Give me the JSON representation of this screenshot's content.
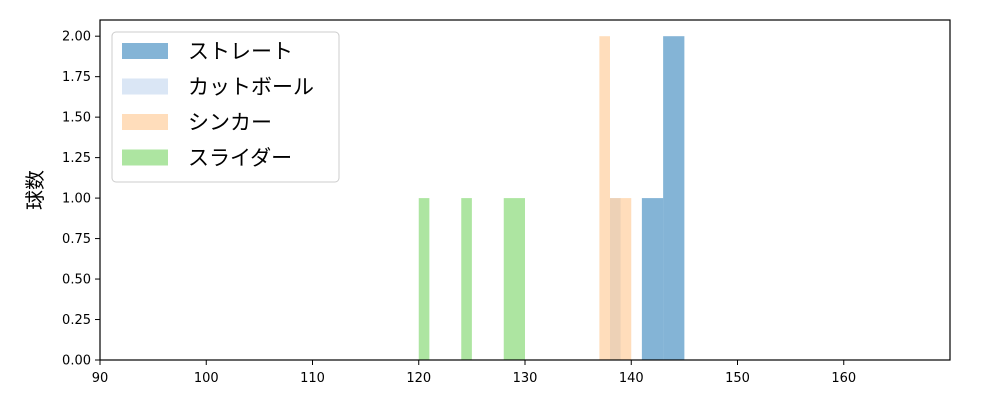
{
  "chart_data": {
    "type": "bar",
    "title": "",
    "xlabel": "",
    "ylabel": "球数",
    "xlim": [
      90,
      170
    ],
    "ylim": [
      0,
      2.1
    ],
    "x_ticks": [
      90,
      100,
      110,
      120,
      130,
      140,
      150,
      160
    ],
    "y_ticks": [
      0.0,
      0.25,
      0.5,
      0.75,
      1.0,
      1.25,
      1.5,
      1.75,
      2.0
    ],
    "y_tick_labels": [
      "0.00",
      "0.25",
      "0.50",
      "0.75",
      "1.00",
      "1.25",
      "1.50",
      "1.75",
      "2.00"
    ],
    "grid": false,
    "legend_position": "top-left",
    "series": [
      {
        "name": "ストレート",
        "color": "#1f77b4",
        "opacity": 0.55,
        "bins": [
          {
            "x0": 141.0,
            "x1": 143.0,
            "count": 1
          },
          {
            "x0": 143.0,
            "x1": 145.0,
            "count": 2
          }
        ]
      },
      {
        "name": "カットボール",
        "color": "#aec7e8",
        "opacity": 0.45,
        "bins": [
          {
            "x0": 138.0,
            "x1": 139.0,
            "count": 1
          }
        ]
      },
      {
        "name": "シンカー",
        "color": "#ffbb78",
        "opacity": 0.5,
        "bins": [
          {
            "x0": 137.0,
            "x1": 138.0,
            "count": 2
          },
          {
            "x0": 138.0,
            "x1": 140.0,
            "count": 1
          }
        ]
      },
      {
        "name": "スライダー",
        "color": "#98df8a",
        "opacity": 0.8,
        "bins": [
          {
            "x0": 120.0,
            "x1": 121.0,
            "count": 1
          },
          {
            "x0": 124.0,
            "x1": 125.0,
            "count": 1
          },
          {
            "x0": 128.0,
            "x1": 130.0,
            "count": 1
          }
        ]
      }
    ]
  }
}
